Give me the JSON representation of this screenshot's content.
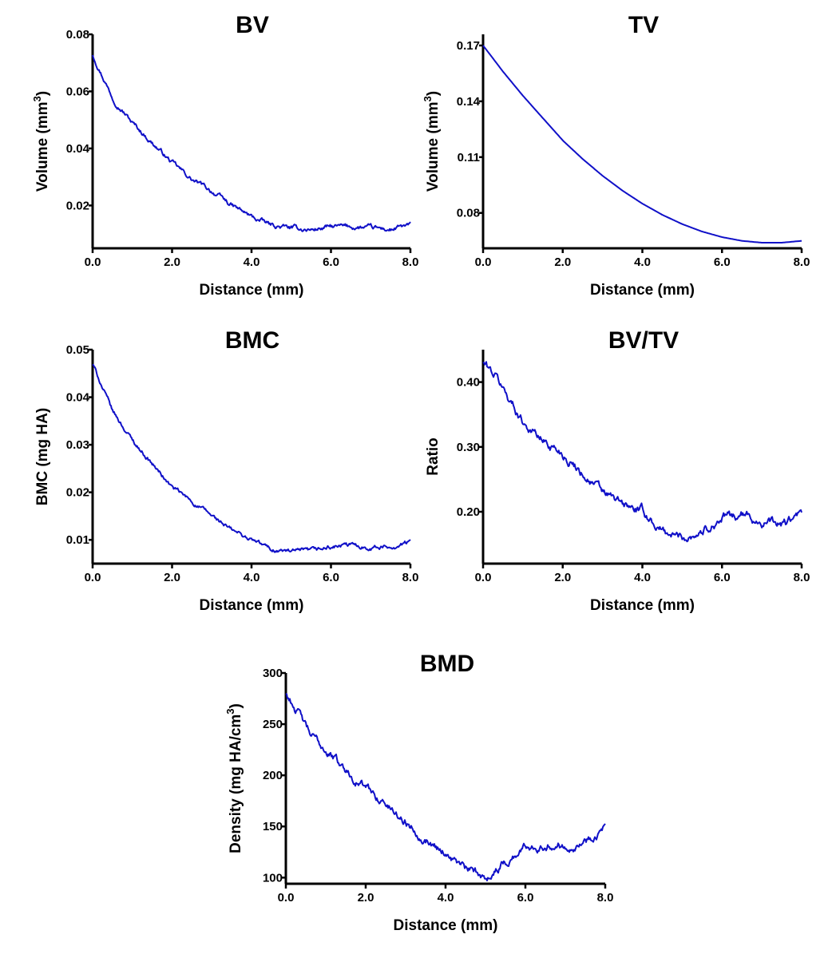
{
  "colors": {
    "line": "#1010c8",
    "axis": "#000000"
  },
  "chart_data": [
    {
      "id": "bv",
      "type": "line",
      "title": "BV",
      "xlabel": "Distance (mm)",
      "ylabel": "Volume (mm",
      "ylabel_sup": "3",
      "ylabel_end": ")",
      "xlim": [
        0,
        8
      ],
      "ylim": [
        0.005,
        0.08
      ],
      "xticks": [
        0,
        2,
        4,
        6,
        8
      ],
      "xtick_labels": [
        "0.0",
        "2.0",
        "4.0",
        "6.0",
        "8.0"
      ],
      "yticks": [
        0.02,
        0.04,
        0.06,
        0.08
      ],
      "ytick_labels": [
        "0.02",
        "0.04",
        "0.06",
        "0.08"
      ],
      "noise": 0.0007,
      "x": [
        0,
        0.2,
        0.5,
        1.0,
        1.5,
        2.0,
        2.5,
        3.0,
        3.5,
        4.0,
        4.5,
        5.0,
        5.5,
        6.0,
        6.5,
        7.0,
        7.5,
        8.0
      ],
      "y": [
        0.073,
        0.067,
        0.058,
        0.049,
        0.042,
        0.035,
        0.029,
        0.025,
        0.02,
        0.016,
        0.013,
        0.012,
        0.0115,
        0.0125,
        0.0125,
        0.012,
        0.0115,
        0.013
      ]
    },
    {
      "id": "tv",
      "type": "line",
      "title": "TV",
      "xlabel": "Distance (mm)",
      "ylabel": "Volume (mm",
      "ylabel_sup": "3",
      "ylabel_end": ")",
      "xlim": [
        0,
        8
      ],
      "ylim": [
        0.061,
        0.176
      ],
      "xticks": [
        0,
        2,
        4,
        6,
        8
      ],
      "xtick_labels": [
        "0.0",
        "2.0",
        "4.0",
        "6.0",
        "8.0"
      ],
      "yticks": [
        0.08,
        0.11,
        0.14,
        0.17
      ],
      "ytick_labels": [
        "0.08",
        "0.11",
        "0.14",
        "0.17"
      ],
      "noise": 0,
      "x": [
        0,
        0.5,
        1.0,
        1.5,
        2.0,
        2.5,
        3.0,
        3.5,
        4.0,
        4.5,
        5.0,
        5.5,
        6.0,
        6.5,
        7.0,
        7.5,
        8.0
      ],
      "y": [
        0.17,
        0.156,
        0.143,
        0.131,
        0.119,
        0.109,
        0.1,
        0.092,
        0.085,
        0.079,
        0.074,
        0.07,
        0.067,
        0.065,
        0.064,
        0.064,
        0.065
      ]
    },
    {
      "id": "bmc",
      "type": "line",
      "title": "BMC",
      "xlabel": "Distance (mm)",
      "ylabel": "BMC (mg HA)",
      "ylabel_sup": "",
      "ylabel_end": "",
      "xlim": [
        0,
        8
      ],
      "ylim": [
        0.005,
        0.05
      ],
      "xticks": [
        0,
        2,
        4,
        6,
        8
      ],
      "xtick_labels": [
        "0.0",
        "2.0",
        "4.0",
        "6.0",
        "8.0"
      ],
      "yticks": [
        0.01,
        0.02,
        0.03,
        0.04,
        0.05
      ],
      "ytick_labels": [
        "0.01",
        "0.02",
        "0.03",
        "0.04",
        "0.05"
      ],
      "noise": 0.0004,
      "x": [
        0,
        0.2,
        0.5,
        1.0,
        1.5,
        2.0,
        2.5,
        3.0,
        3.5,
        4.0,
        4.5,
        5.0,
        5.5,
        6.0,
        6.5,
        7.0,
        7.5,
        8.0
      ],
      "y": [
        0.047,
        0.043,
        0.037,
        0.031,
        0.026,
        0.021,
        0.018,
        0.015,
        0.012,
        0.01,
        0.008,
        0.0075,
        0.0075,
        0.0085,
        0.0088,
        0.0085,
        0.0085,
        0.0095
      ]
    },
    {
      "id": "bvtv",
      "type": "line",
      "title": "BV/TV",
      "xlabel": "Distance (mm)",
      "ylabel": "Ratio",
      "ylabel_sup": "",
      "ylabel_end": "",
      "xlim": [
        0,
        8
      ],
      "ylim": [
        0.12,
        0.45
      ],
      "xticks": [
        0,
        2,
        4,
        6,
        8
      ],
      "xtick_labels": [
        "0.0",
        "2.0",
        "4.0",
        "6.0",
        "8.0"
      ],
      "yticks": [
        0.2,
        0.3,
        0.4
      ],
      "ytick_labels": [
        "0.20",
        "0.30",
        "0.40"
      ],
      "noise": 0.006,
      "x": [
        0,
        0.3,
        0.6,
        1.0,
        1.5,
        2.0,
        2.5,
        3.0,
        3.5,
        4.0,
        4.5,
        5.0,
        5.5,
        6.0,
        6.5,
        7.0,
        7.5,
        8.0
      ],
      "y": [
        0.43,
        0.41,
        0.38,
        0.34,
        0.31,
        0.29,
        0.26,
        0.23,
        0.21,
        0.2,
        0.17,
        0.16,
        0.17,
        0.19,
        0.195,
        0.185,
        0.18,
        0.195
      ]
    },
    {
      "id": "bmd",
      "type": "line",
      "title": "BMD",
      "xlabel": "Distance (mm)",
      "ylabel": "Density (mg HA/cm",
      "ylabel_sup": "3",
      "ylabel_end": ")",
      "xlim": [
        0,
        8
      ],
      "ylim": [
        94,
        300
      ],
      "xticks": [
        0,
        2,
        4,
        6,
        8
      ],
      "xtick_labels": [
        "0.0",
        "2.0",
        "4.0",
        "6.0",
        "8.0"
      ],
      "yticks": [
        100,
        150,
        200,
        250,
        300
      ],
      "ytick_labels": [
        "100",
        "150",
        "200",
        "250",
        "300"
      ],
      "noise": 3.5,
      "x": [
        0,
        0.3,
        0.6,
        1.0,
        1.5,
        2.0,
        2.5,
        3.0,
        3.5,
        4.0,
        4.5,
        5.0,
        5.5,
        6.0,
        6.5,
        7.0,
        7.5,
        8.0
      ],
      "y": [
        280,
        262,
        240,
        225,
        205,
        188,
        172,
        155,
        138,
        125,
        108,
        100,
        115,
        130,
        133,
        132,
        135,
        150
      ]
    }
  ]
}
